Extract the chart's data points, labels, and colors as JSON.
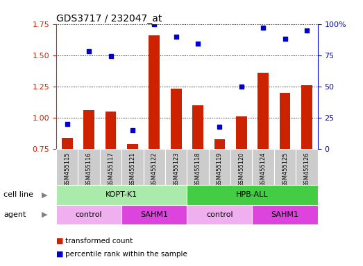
{
  "title": "GDS3717 / 232047_at",
  "samples": [
    "GSM455115",
    "GSM455116",
    "GSM455117",
    "GSM455121",
    "GSM455122",
    "GSM455123",
    "GSM455118",
    "GSM455119",
    "GSM455120",
    "GSM455124",
    "GSM455125",
    "GSM455126"
  ],
  "transformed_count": [
    0.84,
    1.06,
    1.05,
    0.79,
    1.66,
    1.23,
    1.1,
    0.83,
    1.01,
    1.36,
    1.2,
    1.26
  ],
  "percentile_rank": [
    20,
    78,
    74,
    15,
    100,
    90,
    84,
    18,
    50,
    97,
    88,
    95
  ],
  "bar_color": "#cc2200",
  "dot_color": "#0000cc",
  "bar_bottom": 0.75,
  "ylim_left": [
    0.75,
    1.75
  ],
  "ylim_right": [
    0,
    100
  ],
  "yticks_left": [
    0.75,
    1.0,
    1.25,
    1.5,
    1.75
  ],
  "yticks_right": [
    0,
    25,
    50,
    75,
    100
  ],
  "ytick_labels_right": [
    "0",
    "25",
    "50",
    "75",
    "100%"
  ],
  "cell_line_groups": [
    {
      "label": "KOPT-K1",
      "start": 0,
      "end": 5,
      "color": "#aaeaaa"
    },
    {
      "label": "HPB-ALL",
      "start": 6,
      "end": 11,
      "color": "#44cc44"
    }
  ],
  "agent_groups": [
    {
      "label": "control",
      "start": 0,
      "end": 2,
      "color": "#f0b0f0"
    },
    {
      "label": "SAHM1",
      "start": 3,
      "end": 5,
      "color": "#dd44dd"
    },
    {
      "label": "control",
      "start": 6,
      "end": 8,
      "color": "#f0b0f0"
    },
    {
      "label": "SAHM1",
      "start": 9,
      "end": 11,
      "color": "#dd44dd"
    }
  ],
  "tick_color_left": "#cc2200",
  "tick_color_right": "#0000cc",
  "xticklabel_bg": "#cccccc",
  "bar_width": 0.5,
  "legend_items": [
    {
      "color": "#cc2200",
      "label": "transformed count"
    },
    {
      "color": "#0000cc",
      "label": "percentile rank within the sample"
    }
  ]
}
